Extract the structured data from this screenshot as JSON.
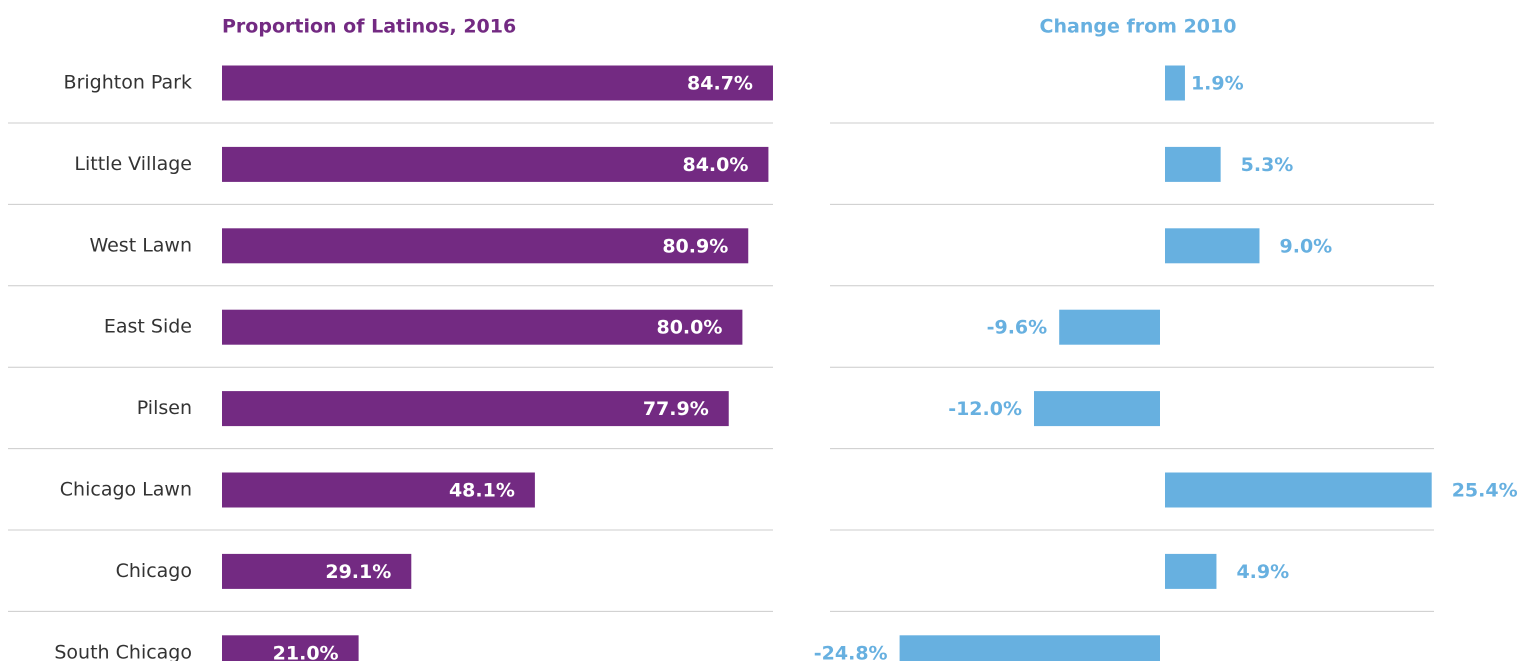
{
  "chart_data": [
    {
      "type": "hbar",
      "title": "Proportion of Latinos, 2016",
      "color": "#732a82",
      "categories": [
        "Brighton Park",
        "Little Village",
        "West Lawn",
        "East Side",
        "Pilsen",
        "Chicago Lawn",
        "Chicago",
        "South Chicago"
      ],
      "values": [
        84.7,
        84.0,
        80.9,
        80.0,
        77.9,
        48.1,
        29.1,
        21.0
      ],
      "value_labels": [
        "84.7%",
        "84.0%",
        "80.9%",
        "80.0%",
        "77.9%",
        "48.1%",
        "29.1%",
        "21.0%"
      ]
    },
    {
      "type": "diverging",
      "title": "Change from 2010",
      "color": "#67b0e0",
      "values": [
        1.9,
        5.3,
        9.0,
        -9.6,
        -12.0,
        25.4,
        4.9,
        -24.8
      ],
      "value_labels": [
        "1.9%",
        "5.3%",
        "9.0%",
        "-9.6%",
        "-12.0%",
        "25.4%",
        "4.9%",
        "-24.8%"
      ]
    }
  ]
}
